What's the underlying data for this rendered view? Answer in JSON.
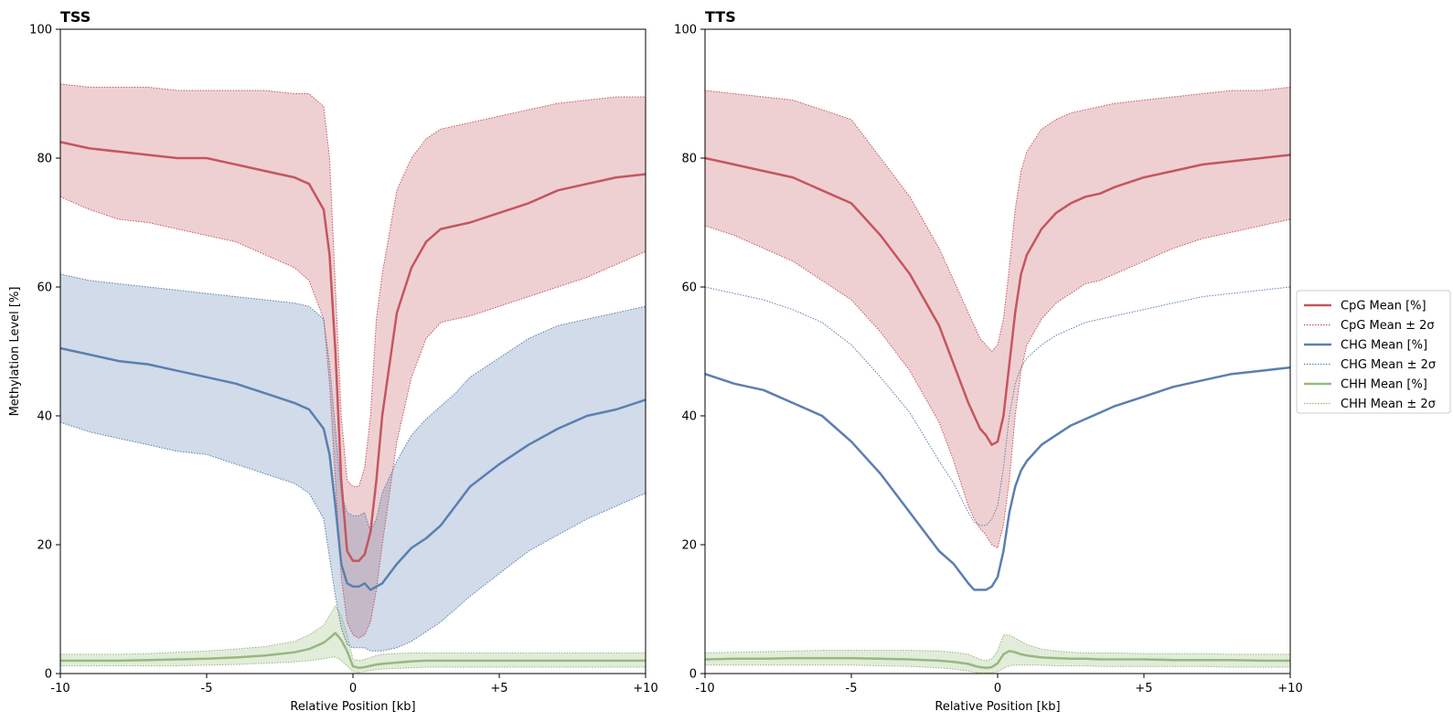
{
  "chart_data": [
    {
      "type": "line",
      "title": "TSS",
      "xlabel": "Relative Position [kb]",
      "ylabel": "Methylation Level [%]",
      "xlim": [
        -10,
        10
      ],
      "ylim": [
        0,
        100
      ],
      "x_ticks": [
        -10,
        -5,
        0,
        5,
        10
      ],
      "x_tick_labels": [
        "-10",
        "-5",
        "0",
        "+5",
        "+10"
      ],
      "y_ticks": [
        0,
        20,
        40,
        60,
        80,
        100
      ],
      "y_tick_labels": [
        "0",
        "20",
        "40",
        "60",
        "80",
        "100"
      ],
      "x": [
        -10,
        -9,
        -8,
        -7,
        -6,
        -5,
        -4,
        -3,
        -2,
        -1.5,
        -1,
        -0.8,
        -0.6,
        -0.4,
        -0.2,
        0,
        0.2,
        0.4,
        0.6,
        0.8,
        1,
        1.5,
        2,
        2.5,
        3,
        3.5,
        4,
        5,
        6,
        7,
        8,
        9,
        10
      ],
      "series": [
        {
          "name": "CpG Mean [%]",
          "color": "#c4565f",
          "mean": [
            82.5,
            81.5,
            81,
            80.5,
            80,
            80,
            79,
            78,
            77,
            76,
            72,
            65,
            50,
            30,
            19,
            17.5,
            17.5,
            18.5,
            22,
            30,
            40,
            56,
            63,
            67,
            69,
            69.5,
            70,
            71.5,
            73,
            75,
            76,
            77,
            77.5
          ],
          "upper": [
            91.5,
            91,
            91,
            91,
            90.5,
            90.5,
            90.5,
            90.5,
            90,
            90,
            88,
            80,
            60,
            40,
            30,
            29,
            29,
            32,
            40,
            55,
            62,
            75,
            80,
            83,
            84.5,
            85,
            85.5,
            86.5,
            87.5,
            88.5,
            89,
            89.5,
            89.5
          ],
          "lower": [
            74,
            72,
            70.5,
            70,
            69,
            68,
            67,
            65,
            63,
            61,
            55,
            45,
            30,
            15,
            8,
            6,
            5.5,
            6,
            8,
            13,
            20,
            36,
            46,
            52,
            54.5,
            55,
            55.5,
            57,
            58.5,
            60,
            61.5,
            63.5,
            65.5
          ]
        },
        {
          "name": "CHG Mean [%]",
          "color": "#5b7fb0",
          "mean": [
            50.5,
            49.5,
            48.5,
            48,
            47,
            46,
            45,
            43.5,
            42,
            41,
            38,
            34,
            26,
            17,
            14,
            13.5,
            13.5,
            14,
            13,
            13.5,
            14,
            17,
            19.5,
            21,
            23,
            26,
            29,
            32.5,
            35.5,
            38,
            40,
            41,
            42.5
          ],
          "upper": [
            62,
            61,
            60.5,
            60,
            59.5,
            59,
            58.5,
            58,
            57.5,
            57,
            55,
            48,
            38,
            28,
            25,
            24.5,
            24.5,
            25,
            22,
            24,
            28,
            33,
            37,
            39.5,
            41.5,
            43.5,
            46,
            49,
            52,
            54,
            55,
            56,
            57
          ],
          "lower": [
            39,
            37.5,
            36.5,
            35.5,
            34.5,
            34,
            32.5,
            31,
            29.5,
            28,
            24,
            18,
            12,
            7,
            4.5,
            4,
            4,
            4,
            3.5,
            3.5,
            3.5,
            4,
            5,
            6.5,
            8,
            10,
            12,
            15.5,
            19,
            21.5,
            24,
            26,
            28
          ]
        },
        {
          "name": "CHH Mean [%]",
          "color": "#96b97c",
          "mean": [
            2,
            2,
            2,
            2.1,
            2.2,
            2.3,
            2.5,
            2.8,
            3.3,
            3.8,
            4.8,
            5.5,
            6.3,
            5.2,
            3.5,
            1.1,
            0.9,
            1.0,
            1.2,
            1.4,
            1.5,
            1.7,
            1.9,
            2.0,
            2.0,
            2.0,
            2.0,
            2.0,
            2.0,
            2.0,
            2.0,
            2.0,
            2.0
          ],
          "upper": [
            3,
            3,
            3,
            3.1,
            3.3,
            3.5,
            3.8,
            4.2,
            5,
            6,
            7.5,
            9,
            10.5,
            9,
            6,
            2.2,
            2.0,
            2.2,
            2.5,
            2.8,
            3.0,
            3.1,
            3.2,
            3.2,
            3.2,
            3.2,
            3.2,
            3.2,
            3.2,
            3.2,
            3.2,
            3.2,
            3.2
          ],
          "lower": [
            1.2,
            1.2,
            1.2,
            1.2,
            1.2,
            1.3,
            1.4,
            1.6,
            1.8,
            2.0,
            2.3,
            2.5,
            2.6,
            2.0,
            1.2,
            0.3,
            0.2,
            0.3,
            0.5,
            0.6,
            0.7,
            0.8,
            0.9,
            1.0,
            1.0,
            1.0,
            1.0,
            1.0,
            1.0,
            1.0,
            1.0,
            1.0,
            1.0
          ]
        }
      ]
    },
    {
      "type": "line",
      "title": "TTS",
      "xlabel": "Relative Position [kb]",
      "ylabel": "",
      "xlim": [
        -10,
        10
      ],
      "ylim": [
        0,
        100
      ],
      "x_ticks": [
        -10,
        -5,
        0,
        5,
        10
      ],
      "x_tick_labels": [
        "-10",
        "-5",
        "0",
        "+5",
        "+10"
      ],
      "y_ticks": [
        0,
        20,
        40,
        60,
        80,
        100
      ],
      "y_tick_labels": [
        "0",
        "20",
        "40",
        "60",
        "80",
        "100"
      ],
      "x": [
        -10,
        -9,
        -8,
        -7,
        -6,
        -5,
        -4,
        -3,
        -2,
        -1.5,
        -1,
        -0.8,
        -0.6,
        -0.4,
        -0.2,
        0,
        0.2,
        0.4,
        0.6,
        0.8,
        1,
        1.5,
        2,
        2.5,
        3,
        3.5,
        4,
        5,
        6,
        7,
        8,
        9,
        10
      ],
      "series": [
        {
          "name": "CpG Mean [%]",
          "color": "#c4565f",
          "mean": [
            80,
            79,
            78,
            77,
            75,
            73,
            68,
            62,
            54,
            48,
            42,
            40,
            38,
            37,
            35.5,
            36,
            40,
            48,
            56,
            62,
            65,
            69,
            71.5,
            73,
            74,
            74.5,
            75.5,
            77,
            78,
            79,
            79.5,
            80,
            80.5
          ],
          "upper": [
            90.5,
            90,
            89.5,
            89,
            87.5,
            86,
            80,
            74,
            66,
            61,
            56,
            54,
            52,
            51,
            50,
            51,
            55,
            63,
            72,
            78,
            81,
            84.5,
            86,
            87,
            87.5,
            88,
            88.5,
            89,
            89.5,
            90,
            90.5,
            90.5,
            91
          ],
          "lower": [
            69.5,
            68,
            66,
            64,
            61,
            58,
            53,
            47,
            39,
            33,
            26,
            24,
            22.5,
            21.5,
            20,
            19.5,
            23,
            30,
            40,
            47,
            51,
            55,
            57.5,
            59,
            60.5,
            61,
            62,
            64,
            66,
            67.5,
            68.5,
            69.5,
            70.5
          ]
        },
        {
          "name": "CHG Mean [%]",
          "color": "#5b7fb0",
          "mean": [
            46.5,
            45,
            44,
            42,
            40,
            36,
            31,
            25,
            19,
            17,
            14,
            13,
            13,
            13,
            13.5,
            15,
            19,
            25,
            29,
            31.5,
            33,
            35.5,
            37,
            38.5,
            39.5,
            40.5,
            41.5,
            43,
            44.5,
            45.5,
            46.5,
            47,
            47.5
          ],
          "upper": [
            60,
            59,
            58,
            56.5,
            54.5,
            51,
            46,
            40.5,
            33,
            29.5,
            25,
            23.5,
            23,
            23,
            24,
            26,
            32,
            40,
            45,
            47.5,
            49,
            51,
            52.5,
            53.5,
            54.5,
            55,
            55.5,
            56.5,
            57.5,
            58.5,
            59,
            59.5,
            60
          ]
        },
        {
          "name": "CHH Mean [%]",
          "color": "#96b97c",
          "mean": [
            2.2,
            2.3,
            2.3,
            2.4,
            2.4,
            2.4,
            2.3,
            2.2,
            2.0,
            1.8,
            1.5,
            1.2,
            1.0,
            0.9,
            1.0,
            1.6,
            3.0,
            3.5,
            3.3,
            3.0,
            2.8,
            2.5,
            2.4,
            2.3,
            2.3,
            2.2,
            2.2,
            2.2,
            2.1,
            2.1,
            2.1,
            2.0,
            2.0
          ],
          "upper": [
            3.2,
            3.3,
            3.4,
            3.5,
            3.6,
            3.6,
            3.6,
            3.6,
            3.5,
            3.3,
            3.0,
            2.6,
            2.2,
            2.0,
            2.3,
            3.5,
            6.0,
            6.0,
            5.5,
            5.0,
            4.5,
            3.8,
            3.5,
            3.3,
            3.2,
            3.2,
            3.2,
            3.1,
            3.1,
            3.1,
            3.0,
            3.0,
            3.0
          ],
          "lower": [
            1.3,
            1.3,
            1.3,
            1.3,
            1.3,
            1.3,
            1.2,
            1.1,
            0.9,
            0.7,
            0.4,
            0.2,
            0.1,
            0.1,
            0.1,
            0.3,
            0.8,
            1.2,
            1.3,
            1.3,
            1.3,
            1.3,
            1.2,
            1.2,
            1.2,
            1.1,
            1.1,
            1.1,
            1.1,
            1.1,
            1.0,
            1.0,
            1.0
          ]
        }
      ]
    }
  ],
  "legend": {
    "placement": "center-right",
    "items": [
      {
        "label": "CpG Mean [%]",
        "style": "solid",
        "color": "#c4565f"
      },
      {
        "label": "CpG Mean ± 2σ",
        "style": "dotted",
        "color": "#c4565f"
      },
      {
        "label": "CHG Mean [%]",
        "style": "solid",
        "color": "#5b7fb0"
      },
      {
        "label": "CHG Mean ± 2σ",
        "style": "dotted",
        "color": "#5b7fb0"
      },
      {
        "label": "CHH Mean [%]",
        "style": "solid",
        "color": "#96b97c"
      },
      {
        "label": "CHH Mean ± 2σ",
        "style": "dotted",
        "color": "#96b97c"
      }
    ]
  }
}
